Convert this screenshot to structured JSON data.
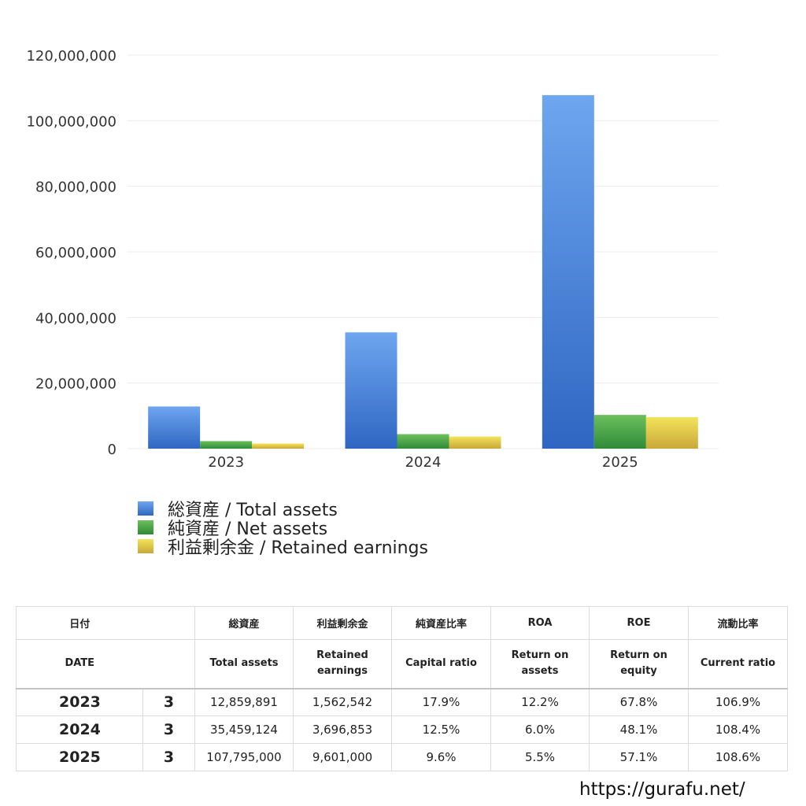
{
  "chart_data": {
    "type": "bar",
    "categories": [
      "2023",
      "2024",
      "2025"
    ],
    "series": [
      {
        "name": "総資産 / Total assets",
        "values": [
          12859891,
          35459124,
          107795000
        ],
        "color_top": "#6ea6f0",
        "color_bottom": "#2f66c2"
      },
      {
        "name": "純資産 / Net assets",
        "values": [
          2305000,
          4433000,
          10290000
        ],
        "color_top": "#6cc05c",
        "color_bottom": "#2e8b38"
      },
      {
        "name": "利益剰余金 / Retained earnings",
        "values": [
          1562542,
          3696853,
          9601000
        ],
        "color_top": "#f3e35a",
        "color_bottom": "#c9a83a"
      }
    ],
    "ylim": [
      0,
      120000000
    ],
    "yticks": [
      0,
      20000000,
      40000000,
      60000000,
      80000000,
      100000000,
      120000000
    ],
    "ytick_labels": [
      "0",
      "20,000,000",
      "40,000,000",
      "60,000,000",
      "80,000,000",
      "100,000,000",
      "120,000,000"
    ],
    "grid": true,
    "legend_position": "bottom-left"
  },
  "table": {
    "header_jp": {
      "date": "日付",
      "total_assets": "総資産",
      "retained": "利益剰余金",
      "capital_ratio": "純資産比率",
      "roa": "ROA",
      "roe": "ROE",
      "current_ratio": "流動比率"
    },
    "header_en": {
      "date": "DATE",
      "total_assets": "Total assets",
      "retained_1": "Retained",
      "retained_2": "earnings",
      "capital_ratio": "Capital ratio",
      "roa_1": "Return on",
      "roa_2": "assets",
      "roe_1": "Return on",
      "roe_2": "equity",
      "current_ratio": "Current ratio"
    },
    "rows": [
      {
        "year": "2023",
        "q": "3",
        "total_assets": "12,859,891",
        "retained": "1,562,542",
        "capital_ratio": "17.9%",
        "roa": "12.2%",
        "roe": "67.8%",
        "current_ratio": "106.9%"
      },
      {
        "year": "2024",
        "q": "3",
        "total_assets": "35,459,124",
        "retained": "3,696,853",
        "capital_ratio": "12.5%",
        "roa": "6.0%",
        "roe": "48.1%",
        "current_ratio": "108.4%"
      },
      {
        "year": "2025",
        "q": "3",
        "total_assets": "107,795,000",
        "retained": "9,601,000",
        "capital_ratio": "9.6%",
        "roa": "5.5%",
        "roe": "57.1%",
        "current_ratio": "108.6%"
      }
    ]
  },
  "footer": {
    "url": "https://gurafu.net/"
  }
}
